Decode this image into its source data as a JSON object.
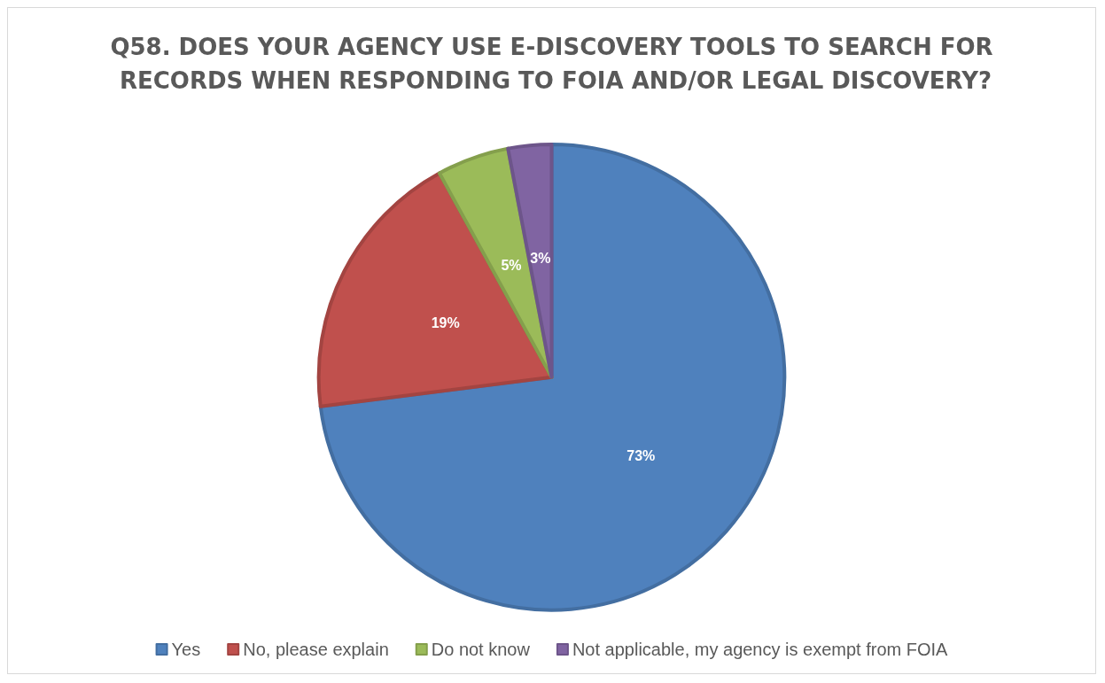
{
  "chart_data": {
    "type": "pie",
    "title": "Q58. DOES YOUR AGENCY USE E-DISCOVERY TOOLS TO SEARCH FOR RECORDS WHEN RESPONDING TO FOIA AND/OR LEGAL DISCOVERY?",
    "categories": [
      "Yes",
      "No, please explain",
      "Do not know",
      "Not applicable, my agency is exempt from FOIA"
    ],
    "values": [
      73,
      19,
      5,
      3
    ],
    "colors": [
      "#4f81bd",
      "#c0504d",
      "#9bbb59",
      "#8064a2"
    ],
    "value_labels": [
      "73%",
      "19%",
      "5%",
      "3%"
    ],
    "legend": "bottom"
  }
}
